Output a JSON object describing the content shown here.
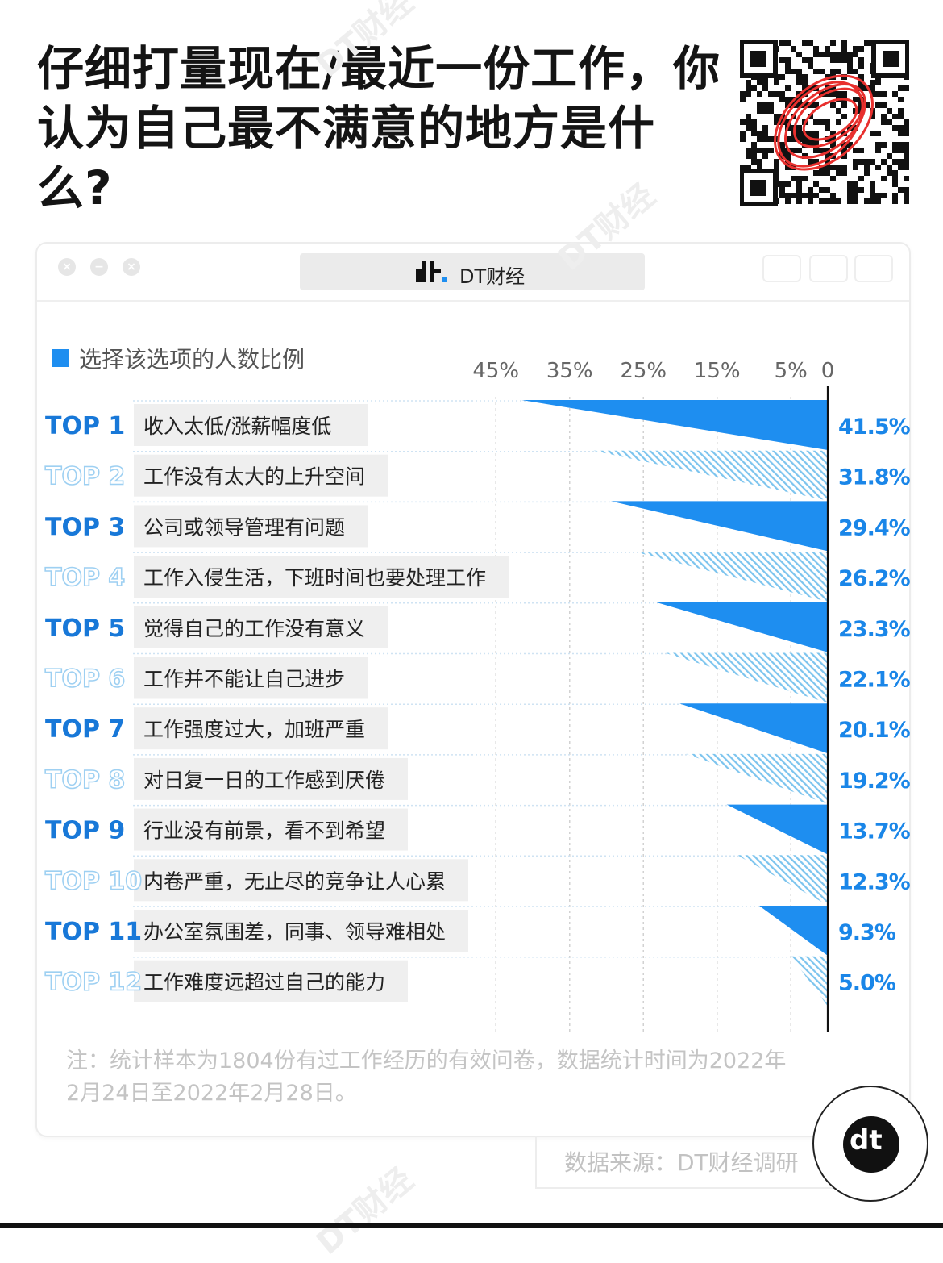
{
  "headline": {
    "line1": "仔细打量现在/最近一份工作，你",
    "line2": "认为自己最不满意的地方是什么?"
  },
  "window": {
    "brand_logo": "dt",
    "brand_name": "DT财经"
  },
  "watermark": "DT财经",
  "chart_data": {
    "type": "bar",
    "orientation": "horizontal",
    "legend": "选择该选项的人数比例",
    "xlim": [
      45,
      0
    ],
    "xticks": [
      "45%",
      "35%",
      "25%",
      "15%",
      "5%",
      "0"
    ],
    "tick_values": [
      45,
      35,
      25,
      15,
      5,
      0
    ],
    "ranks": [
      "TOP 1",
      "TOP 2",
      "TOP 3",
      "TOP 4",
      "TOP 5",
      "TOP 6",
      "TOP 7",
      "TOP 8",
      "TOP 9",
      "TOP 10",
      "TOP 11",
      "TOP 12"
    ],
    "categories": [
      "收入太低/涨薪幅度低",
      "工作没有太大的上升空间",
      "公司或领导管理有问题",
      "工作入侵生活，下班时间也要处理工作",
      "觉得自己的工作没有意义",
      "工作并不能让自己进步",
      "工作强度过大，加班严重",
      "对日复一日的工作感到厌倦",
      "行业没有前景，看不到希望",
      "内卷严重，无止尽的竞争让人心累",
      "办公室氛围差，同事、领导难相处",
      "工作难度远超过自己的能力"
    ],
    "values": [
      41.5,
      31.8,
      29.4,
      26.2,
      23.3,
      22.1,
      20.1,
      19.2,
      13.7,
      12.3,
      9.3,
      5.0
    ],
    "value_labels": [
      "41.5%",
      "31.8%",
      "29.4%",
      "26.2%",
      "23.3%",
      "22.1%",
      "20.1%",
      "19.2%",
      "13.7%",
      "12.3%",
      "9.3%",
      "5.0%"
    ],
    "colors": {
      "solid": "#1e8ef0",
      "hatched": "#7cc4ee",
      "rank_solid": "#1878d8",
      "rank_outline": "#9ed0f2",
      "label_bg": "#efefef"
    }
  },
  "footnote": {
    "line1": "注：统计样本为1804份有过工作经历的有效问卷，数据统计时间为2022年",
    "line2": "2月24日至2022年2月28日。"
  },
  "source": "数据来源：DT财经调研",
  "badge": "dt"
}
